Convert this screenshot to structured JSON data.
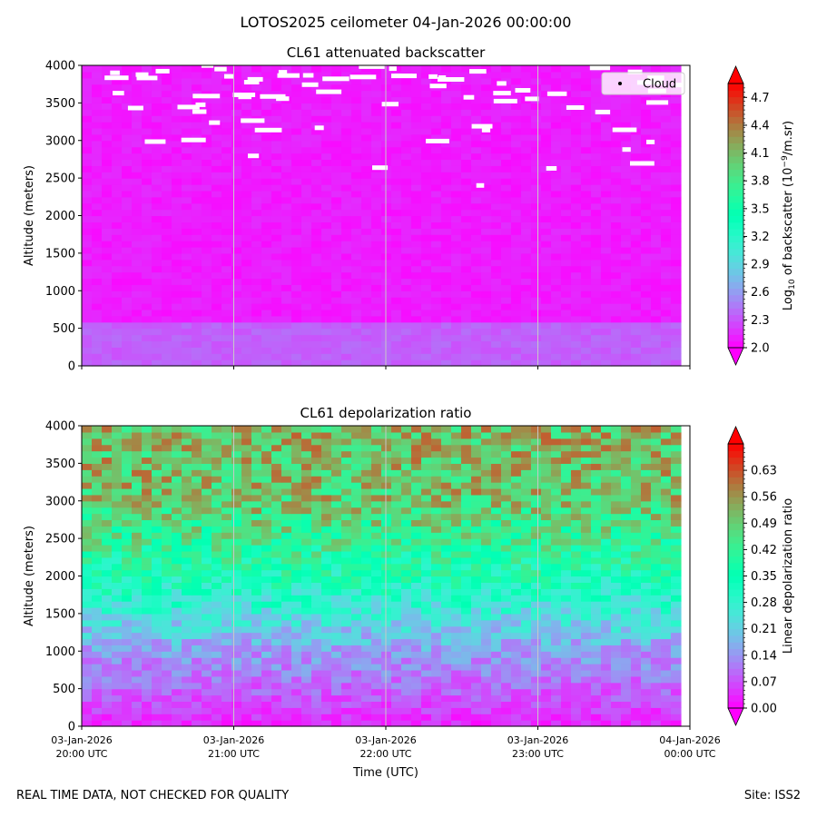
{
  "suptitle": "LOTOS2025 ceilometer 04-Jan-2026 00:00:00",
  "footer": {
    "left": "REAL TIME DATA, NOT CHECKED FOR QUALITY",
    "right": "Site: ISS2"
  },
  "colors": {
    "background": "#ffffff",
    "gridline": "#c8c8c8",
    "legend_marker": "#000000"
  },
  "chart_data": [
    {
      "type": "heatmap",
      "title": "CL61 attenuated backscatter",
      "ylabel": "Altitude (meters)",
      "xlabel": "",
      "x_range_utc": [
        "2026-01-03T20:00",
        "2026-01-04T00:00"
      ],
      "ylim": [
        0,
        4000
      ],
      "yticks": [
        "0",
        "500",
        "1000",
        "1500",
        "2000",
        "2500",
        "3000",
        "3500",
        "4000"
      ],
      "xticks": [],
      "colorbar": {
        "label_parts": [
          "Log",
          "10",
          " of backscatter (10",
          "−9",
          "/m.sr)"
        ],
        "range": [
          2.0,
          4.85
        ],
        "ticks": [
          "2.0",
          "2.3",
          "2.6",
          "2.9",
          "3.2",
          "3.5",
          "3.8",
          "4.1",
          "4.4",
          "4.7"
        ],
        "colormap": "rainbow",
        "extend": "both"
      },
      "legend": {
        "label": "Cloud",
        "position": "top-right"
      },
      "field_description": {
        "surface_layer_value": 2.35,
        "free_troposphere_value": 2.1,
        "cloud_layer_altitude_range": [
          2200,
          4000
        ]
      }
    },
    {
      "type": "heatmap",
      "title": "CL61 depolarization ratio",
      "ylabel": "Altitude (meters)",
      "xlabel": "Time (UTC)",
      "x_range_utc": [
        "2026-01-03T20:00",
        "2026-01-04T00:00"
      ],
      "ylim": [
        0,
        4000
      ],
      "yticks": [
        "0",
        "500",
        "1000",
        "1500",
        "2000",
        "2500",
        "3000",
        "3500",
        "4000"
      ],
      "xticks": [
        [
          "03-Jan-2026",
          "20:00 UTC"
        ],
        [
          "03-Jan-2026",
          "21:00 UTC"
        ],
        [
          "03-Jan-2026",
          "22:00 UTC"
        ],
        [
          "03-Jan-2026",
          "23:00 UTC"
        ],
        [
          "04-Jan-2026",
          "00:00 UTC"
        ]
      ],
      "colorbar": {
        "label_parts": [
          "Linear depolarization ratio"
        ],
        "range": [
          0.0,
          0.7
        ],
        "ticks": [
          "0.00",
          "0.07",
          "0.14",
          "0.21",
          "0.28",
          "0.35",
          "0.42",
          "0.49",
          "0.56",
          "0.63"
        ],
        "colormap": "rainbow",
        "extend": "both"
      },
      "field_description": {
        "value_at_0m": 0.03,
        "value_at_1000m": 0.15,
        "value_at_2000m": 0.35,
        "value_at_3000m": 0.5,
        "value_at_4000m": 0.52
      }
    }
  ]
}
